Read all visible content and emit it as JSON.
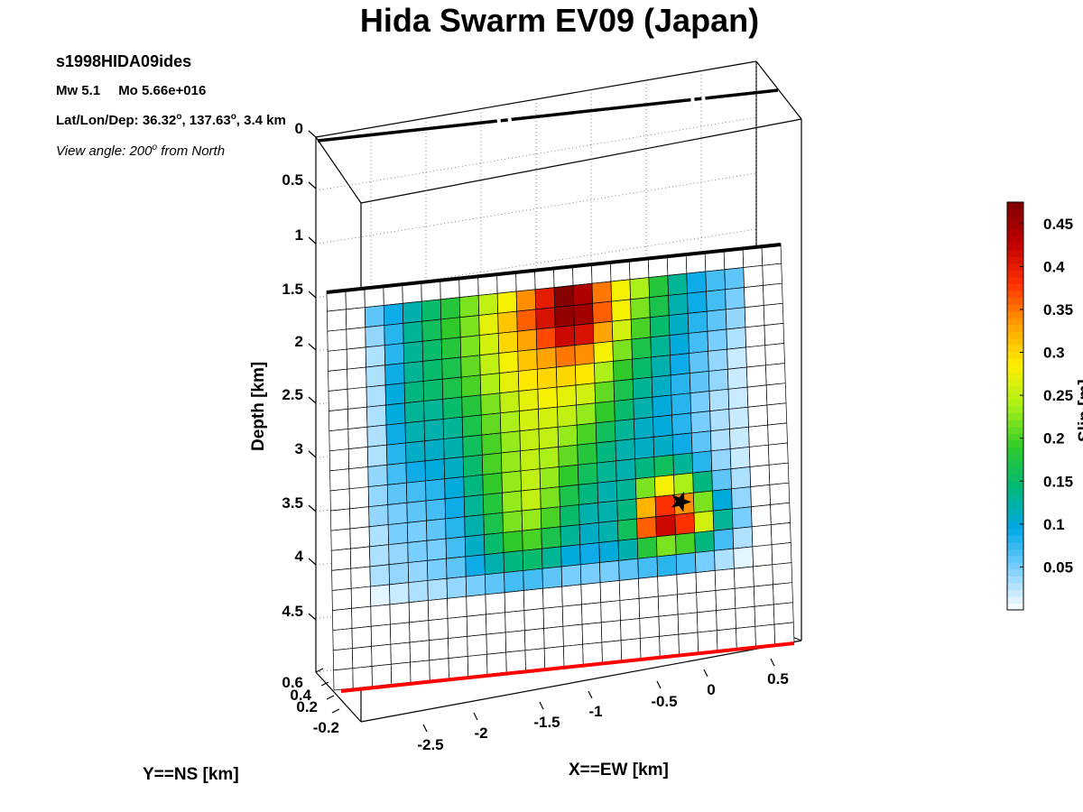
{
  "chart_data": {
    "type": "heatmap",
    "title": "Hida Swarm EV09 (Japan)",
    "event_name": "s1998HIDA09ides",
    "magnitude_line": {
      "mw_label": "Mw 5.1",
      "mo_label": "Mo 5.66e+016"
    },
    "location": {
      "prefix": "Lat/Lon/Dep: 36.32",
      "lon": ", 137.63",
      "dep": ", 3.4 km",
      "deg": "o"
    },
    "view": {
      "prefix": "View angle: 200",
      "suffix": " from North",
      "deg": "o"
    },
    "xlabel": "X==EW [km]",
    "ylabel": "Y==NS [km]",
    "zlabel": "Depth [km]",
    "colorbar_label": "Slip [m]",
    "x_ticks": [
      "0.5",
      "0",
      "-0.5",
      "-1",
      "-1.5",
      "-2",
      "-2.5"
    ],
    "y_ticks": [
      "0.6",
      "0.4",
      "0.2",
      "-0.2"
    ],
    "z_ticks": [
      "0",
      "0.5",
      "1",
      "1.5",
      "2",
      "2.5",
      "3",
      "3.5",
      "4",
      "4.5"
    ],
    "z_range": [
      0,
      5
    ],
    "colorbar_ticks": [
      "0.05",
      "0.1",
      "0.15",
      "0.2",
      "0.25",
      "0.3",
      "0.35",
      "0.4",
      "0.45"
    ],
    "colorbar_range": [
      0,
      0.475
    ],
    "grid": true,
    "colorbar_placement": "right",
    "colormap": [
      "#ffffff",
      "#7fd0ff",
      "#00a8e6",
      "#00b87a",
      "#2fca2a",
      "#a8f018",
      "#fff000",
      "#ffa000",
      "#ff3000",
      "#c00000",
      "#800000"
    ],
    "fault_trace_colors": {
      "top": "#000000",
      "bottom": "#ff0000"
    },
    "slip_grid": {
      "rows_depth_km": [
        1.5,
        1.75,
        2.0,
        2.25,
        2.5,
        2.75,
        3.0,
        3.25,
        3.5,
        3.75,
        4.0,
        4.25,
        4.5,
        4.75,
        5.0
      ],
      "values": [
        [
          0.06,
          0.09,
          0.12,
          0.15,
          0.18,
          0.22,
          0.25,
          0.28,
          0.34,
          0.4,
          0.47,
          0.44,
          0.35,
          0.28,
          0.24,
          0.18,
          0.13,
          0.09,
          0.07,
          0.06
        ],
        [
          0.04,
          0.08,
          0.13,
          0.16,
          0.19,
          0.22,
          0.27,
          0.31,
          0.36,
          0.41,
          0.46,
          0.45,
          0.36,
          0.28,
          0.22,
          0.17,
          0.12,
          0.09,
          0.07,
          0.05
        ],
        [
          0.03,
          0.08,
          0.13,
          0.15,
          0.18,
          0.22,
          0.26,
          0.3,
          0.33,
          0.37,
          0.42,
          0.41,
          0.33,
          0.26,
          0.2,
          0.15,
          0.11,
          0.08,
          0.06,
          0.04
        ],
        [
          0.03,
          0.09,
          0.13,
          0.15,
          0.17,
          0.21,
          0.25,
          0.28,
          0.31,
          0.33,
          0.35,
          0.34,
          0.28,
          0.22,
          0.17,
          0.13,
          0.1,
          0.07,
          0.05,
          0.03
        ],
        [
          0.03,
          0.1,
          0.14,
          0.15,
          0.17,
          0.2,
          0.24,
          0.27,
          0.29,
          0.3,
          0.3,
          0.29,
          0.24,
          0.19,
          0.15,
          0.12,
          0.09,
          0.06,
          0.04,
          0.02
        ],
        [
          0.03,
          0.1,
          0.13,
          0.13,
          0.15,
          0.18,
          0.22,
          0.25,
          0.27,
          0.28,
          0.27,
          0.26,
          0.21,
          0.17,
          0.13,
          0.11,
          0.08,
          0.06,
          0.04,
          0.02
        ],
        [
          0.03,
          0.09,
          0.12,
          0.12,
          0.13,
          0.17,
          0.21,
          0.24,
          0.26,
          0.26,
          0.25,
          0.23,
          0.19,
          0.15,
          0.12,
          0.1,
          0.08,
          0.05,
          0.03,
          0.02
        ],
        [
          0.03,
          0.08,
          0.11,
          0.11,
          0.12,
          0.16,
          0.2,
          0.23,
          0.25,
          0.25,
          0.23,
          0.2,
          0.16,
          0.13,
          0.11,
          0.1,
          0.08,
          0.05,
          0.03,
          0.02
        ],
        [
          0.04,
          0.07,
          0.09,
          0.1,
          0.11,
          0.15,
          0.2,
          0.23,
          0.25,
          0.24,
          0.21,
          0.18,
          0.14,
          0.12,
          0.11,
          0.11,
          0.09,
          0.06,
          0.03,
          0.02
        ],
        [
          0.04,
          0.06,
          0.07,
          0.08,
          0.1,
          0.14,
          0.19,
          0.23,
          0.25,
          0.23,
          0.19,
          0.16,
          0.13,
          0.12,
          0.14,
          0.16,
          0.13,
          0.08,
          0.04,
          0.02
        ],
        [
          0.04,
          0.05,
          0.06,
          0.07,
          0.09,
          0.13,
          0.18,
          0.23,
          0.25,
          0.22,
          0.17,
          0.14,
          0.12,
          0.13,
          0.22,
          0.28,
          0.24,
          0.14,
          0.06,
          0.03
        ],
        [
          0.03,
          0.05,
          0.05,
          0.06,
          0.08,
          0.12,
          0.17,
          0.22,
          0.23,
          0.2,
          0.15,
          0.12,
          0.12,
          0.14,
          0.32,
          0.38,
          0.34,
          0.22,
          0.1,
          0.04
        ],
        [
          0.03,
          0.04,
          0.05,
          0.05,
          0.07,
          0.11,
          0.15,
          0.19,
          0.2,
          0.17,
          0.13,
          0.11,
          0.12,
          0.16,
          0.36,
          0.42,
          0.38,
          0.26,
          0.13,
          0.05
        ],
        [
          0.03,
          0.04,
          0.04,
          0.05,
          0.06,
          0.09,
          0.12,
          0.14,
          0.15,
          0.13,
          0.1,
          0.09,
          0.1,
          0.12,
          0.18,
          0.22,
          0.2,
          0.14,
          0.07,
          0.03
        ],
        [
          0.01,
          0.02,
          0.03,
          0.03,
          0.04,
          0.05,
          0.06,
          0.07,
          0.07,
          0.06,
          0.05,
          0.05,
          0.05,
          0.06,
          0.07,
          0.08,
          0.07,
          0.05,
          0.03,
          0.01
        ]
      ]
    },
    "hypocenter": {
      "marker": "star",
      "depth_km": 3.5,
      "color": "#000000"
    }
  }
}
